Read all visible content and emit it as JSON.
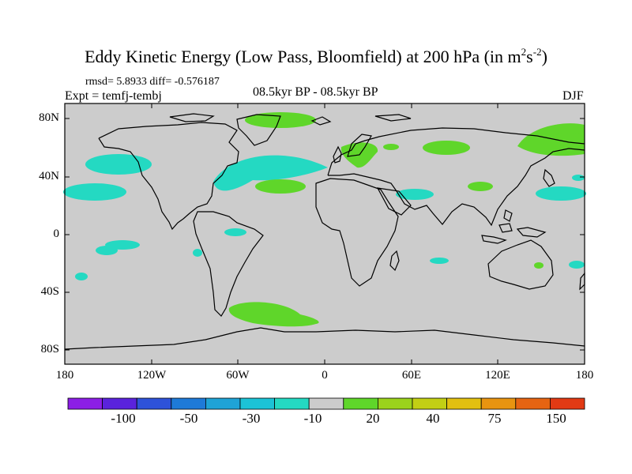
{
  "title": {
    "main": "Eddy Kinetic Energy (Low Pass, Bloomfield) at 200 hPa (in m",
    "sup1": "2",
    "mid": "s",
    "sup2": "-2",
    "end": ")"
  },
  "stats": "rmsd= 5.8933 diff= -0.576187",
  "experiment": "Expt = temfj-tembj",
  "period": "08.5kyr BP - 08.5kyr BP",
  "season": "DJF",
  "lat_labels": [
    "80N",
    "40N",
    "0",
    "40S",
    "80S"
  ],
  "lon_labels": [
    "180",
    "120W",
    "60W",
    "0",
    "60E",
    "120E",
    "180"
  ],
  "colorbar": {
    "colors": [
      "#8c1ee6",
      "#5a23dc",
      "#2e52d9",
      "#1e7ad8",
      "#1fa3d6",
      "#1cc3d6",
      "#24d9c2",
      "#cccccc",
      "#5fd62a",
      "#9bd21c",
      "#c2cf14",
      "#e2c010",
      "#e89410",
      "#e66412",
      "#e23a14"
    ],
    "labels": [
      "-100",
      "-50",
      "-30",
      "-10",
      "20",
      "40",
      "75",
      "150"
    ]
  },
  "colors": {
    "ocean_background": "#cccccc",
    "cyan": "#24d9c2",
    "green": "#5fd62a",
    "coast": "#000000"
  }
}
